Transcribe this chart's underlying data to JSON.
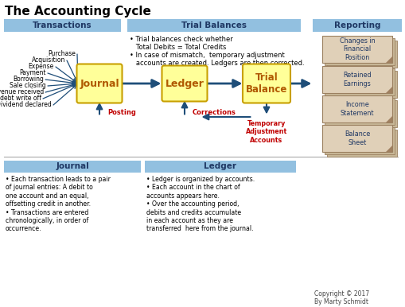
{
  "title": "The Accounting Cycle",
  "background_color": "#ffffff",
  "header_bg": "#92c0e0",
  "box_fill": "#ffff99",
  "box_edge": "#c8a000",
  "arrow_color": "#1f4e79",
  "red_text": "#c00000",
  "section_headers": [
    "Transactions",
    "Trial Balances",
    "Reporting"
  ],
  "section_header_text_color": "#1f3864",
  "transactions_list": [
    "Purchase",
    "Acquisition",
    "Expense",
    "Payment",
    "Borrowing",
    "Sale closing",
    "Revenue received",
    "Bad debt write off",
    "Dividend declared"
  ],
  "reporting_items": [
    "Changes in\nFinancial\nPosition",
    "Retained\nEarnings",
    "Income\nStatement",
    "Balance\nSheet"
  ],
  "posting_label": "Posting",
  "corrections_label": "Corrections",
  "temp_adj_label": "Temporary\nAdjustment\nAccounts",
  "trial_balance_bullet1": "Trial balances check whether\n   Total Debits = Total Credits",
  "trial_balance_bullet2": "In case of mismatch,  temporary adjustment\n   accounts are created. Ledgers are then corrected.",
  "journal_header": "Journal",
  "ledger_header": "Ledger",
  "journal_bullets": [
    "Each transaction leads to a pair\nof journal entries: A debit to\none account and an equal,\noffsetting credit in another.",
    "Transactions are entered\nchronologically, in order of\noccurrence."
  ],
  "ledger_bullets": [
    "Ledger is organized by accounts.",
    "Each account in the chart of\naccounts appears here.",
    "Over the accounting period,\ndebits and credits accumulate\nin each account as they are\ntransferred  here from the journal."
  ],
  "copyright": "Copyright © 2017\nBy Marty Schmidt"
}
